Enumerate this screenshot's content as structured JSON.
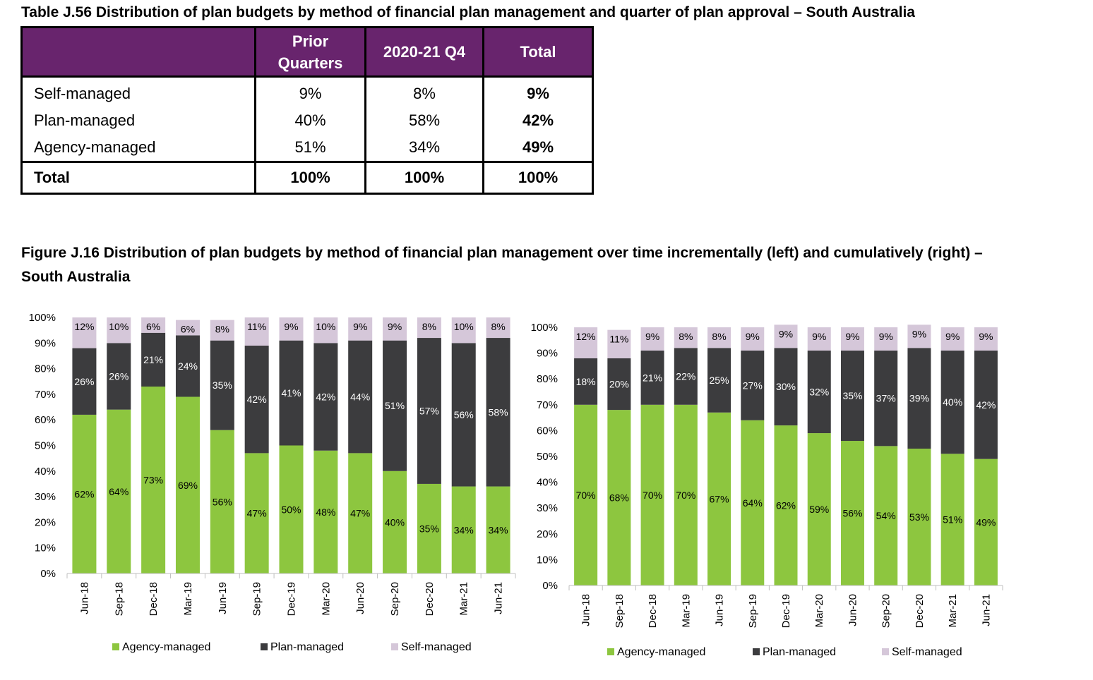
{
  "table": {
    "title": "Table J.56 Distribution of plan budgets by method of financial plan management and quarter of plan approval – South Australia",
    "header_color": "#68246d",
    "columns": [
      "",
      "Prior Quarters",
      "2020-21 Q4",
      "Total"
    ],
    "rows": [
      {
        "label": "Self-managed",
        "values": [
          "9%",
          "8%",
          "9%"
        ]
      },
      {
        "label": "Plan-managed",
        "values": [
          "40%",
          "58%",
          "42%"
        ]
      },
      {
        "label": "Agency-managed",
        "values": [
          "51%",
          "34%",
          "49%"
        ]
      }
    ],
    "total_row": {
      "label": "Total",
      "values": [
        "100%",
        "100%",
        "100%"
      ]
    }
  },
  "figure_title": "Figure J.16 Distribution of plan budgets by method of financial plan management over time incrementally (left) and cumulatively (right) – South Australia",
  "chart_data": [
    {
      "type": "bar",
      "stacked": true,
      "categories": [
        "Jun-18",
        "Sep-18",
        "Dec-18",
        "Mar-19",
        "Jun-19",
        "Sep-19",
        "Dec-19",
        "Mar-20",
        "Jun-20",
        "Sep-20",
        "Dec-20",
        "Mar-21",
        "Jun-21"
      ],
      "series": [
        {
          "name": "Agency-managed",
          "color": "#8dc63f",
          "values": [
            62,
            64,
            73,
            69,
            56,
            47,
            50,
            48,
            47,
            40,
            35,
            34,
            34
          ]
        },
        {
          "name": "Plan-managed",
          "color": "#3c3c3e",
          "values": [
            26,
            26,
            21,
            24,
            35,
            42,
            41,
            42,
            44,
            51,
            57,
            56,
            58
          ]
        },
        {
          "name": "Self-managed",
          "color": "#d5c7d9",
          "values": [
            12,
            10,
            6,
            6,
            8,
            11,
            9,
            10,
            9,
            9,
            8,
            10,
            8
          ]
        }
      ],
      "yticks": [
        "0%",
        "10%",
        "20%",
        "30%",
        "40%",
        "50%",
        "60%",
        "70%",
        "80%",
        "90%",
        "100%"
      ],
      "ylim": [
        0,
        100
      ],
      "legend": "bottom"
    },
    {
      "type": "bar",
      "stacked": true,
      "categories": [
        "Jun-18",
        "Sep-18",
        "Dec-18",
        "Mar-19",
        "Jun-19",
        "Sep-19",
        "Dec-19",
        "Mar-20",
        "Jun-20",
        "Sep-20",
        "Dec-20",
        "Mar-21",
        "Jun-21"
      ],
      "series": [
        {
          "name": "Agency-managed",
          "color": "#8dc63f",
          "values": [
            70,
            68,
            70,
            70,
            67,
            64,
            62,
            59,
            56,
            54,
            53,
            51,
            49
          ]
        },
        {
          "name": "Plan-managed",
          "color": "#3c3c3e",
          "values": [
            18,
            20,
            21,
            22,
            25,
            27,
            30,
            32,
            35,
            37,
            39,
            40,
            42
          ]
        },
        {
          "name": "Self-managed",
          "color": "#d5c7d9",
          "values": [
            12,
            11,
            9,
            8,
            8,
            9,
            9,
            9,
            9,
            9,
            9,
            9,
            9
          ]
        }
      ],
      "yticks": [
        "0%",
        "10%",
        "20%",
        "30%",
        "40%",
        "50%",
        "60%",
        "70%",
        "80%",
        "90%",
        "100%"
      ],
      "ylim": [
        0,
        100
      ],
      "legend": "bottom"
    }
  ]
}
